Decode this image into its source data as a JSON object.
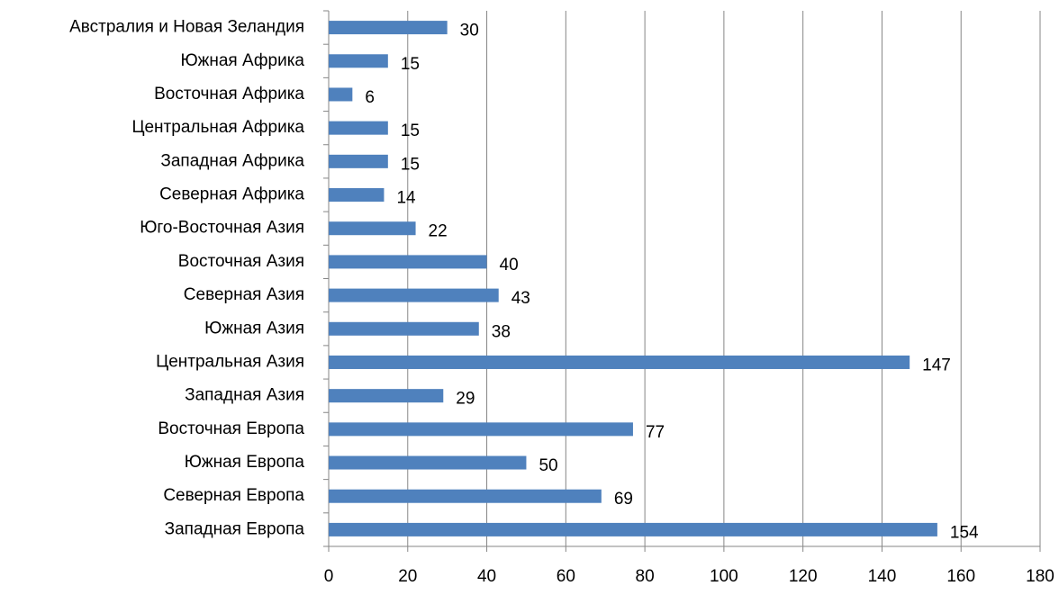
{
  "chart_data": {
    "type": "bar",
    "orientation": "horizontal",
    "categories": [
      "Австралия и Новая Зеландия",
      "Южная Африка",
      "Восточная Африка",
      "Центральная Африка",
      "Западная Африка",
      "Северная Африка",
      "Юго-Восточная Азия",
      "Восточная Азия",
      "Северная Азия",
      "Южная Азия",
      "Центральная Азия",
      "Западная Азия",
      "Восточная Европа",
      "Южная Европа",
      "Северная Европа",
      "Западная Европа"
    ],
    "values": [
      30,
      15,
      6,
      15,
      15,
      14,
      22,
      40,
      43,
      38,
      147,
      29,
      77,
      50,
      69,
      154
    ],
    "color": "#4f81bd",
    "xlim": [
      0,
      180
    ],
    "xticks": [
      0,
      20,
      40,
      60,
      80,
      100,
      120,
      140,
      160,
      180
    ],
    "grid": true
  }
}
